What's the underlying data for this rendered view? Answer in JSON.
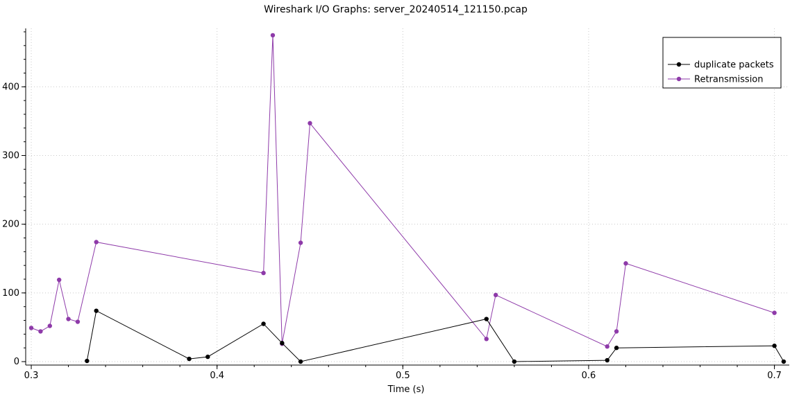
{
  "chart_data": {
    "type": "line",
    "title": "Wireshark I/O Graphs: server_20240514_121150.pcap",
    "xlabel": "Time (s)",
    "ylabel": "",
    "xlim": [
      0.297,
      0.708
    ],
    "ylim": [
      -5,
      485
    ],
    "xticks": [
      0.3,
      0.4,
      0.5,
      0.6,
      0.7
    ],
    "xtick_labels": [
      "0.3",
      "0.4",
      "0.5",
      "0.6",
      "0.7"
    ],
    "yticks": [
      0,
      100,
      200,
      300,
      400
    ],
    "ytick_labels": [
      "0",
      "100",
      "200",
      "300",
      "400"
    ],
    "grid": true,
    "legend_position": "top-right",
    "series": [
      {
        "name": "duplicate packets",
        "color": "#000000",
        "x": [
          0.33,
          0.335,
          0.385,
          0.395,
          0.425,
          0.435,
          0.445,
          0.545,
          0.56,
          0.61,
          0.615,
          0.7,
          0.705
        ],
        "y": [
          1,
          74,
          4,
          7,
          55,
          27,
          0,
          62,
          0,
          2,
          20,
          23,
          0
        ]
      },
      {
        "name": "Retransmission",
        "color": "#8e3aa9",
        "x": [
          0.3,
          0.305,
          0.31,
          0.315,
          0.32,
          0.325,
          0.335,
          0.425,
          0.43,
          0.435,
          0.445,
          0.45,
          0.545,
          0.55,
          0.61,
          0.615,
          0.62,
          0.7
        ],
        "y": [
          49,
          44,
          52,
          119,
          62,
          58,
          174,
          129,
          475,
          26,
          173,
          347,
          33,
          97,
          22,
          44,
          143,
          71
        ]
      }
    ]
  }
}
